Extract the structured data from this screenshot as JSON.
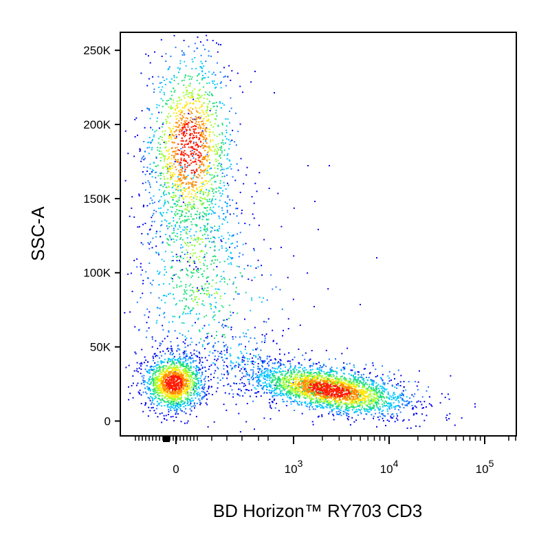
{
  "chart_data": {
    "type": "scatter",
    "style": "flow-cytometry pseudocolor density plot",
    "title": "",
    "xlabel": "BD Horizon™ RY703 CD3",
    "ylabel": "SSC-A",
    "x_scale": "biexponential",
    "x_ticks": [
      {
        "value": 0,
        "base": "0",
        "exp": ""
      },
      {
        "value": 1000,
        "base": "10",
        "exp": "3"
      },
      {
        "value": 10000,
        "base": "10",
        "exp": "4"
      },
      {
        "value": 100000,
        "base": "10",
        "exp": "5"
      }
    ],
    "y_scale": "linear",
    "ylim": [
      -10000,
      262144
    ],
    "y_ticks": [
      {
        "value": 0,
        "label": "0"
      },
      {
        "value": 50000,
        "label": "50K"
      },
      {
        "value": 100000,
        "label": "100K"
      },
      {
        "value": 150000,
        "label": "150K"
      },
      {
        "value": 200000,
        "label": "200K"
      },
      {
        "value": 250000,
        "label": "250K"
      }
    ],
    "grid": false,
    "legend": "none",
    "density_colors": [
      "#0000ff",
      "#00c8ff",
      "#30ff40",
      "#ffff00",
      "#ff0000"
    ],
    "populations": [
      {
        "name_shown": "",
        "description": "CD3-negative lymphocytes",
        "x_center": 0,
        "y_center": 32000,
        "relative_density": "high"
      },
      {
        "name_shown": "",
        "description": "CD3-negative granulocytes/monocytes",
        "x_center": 30,
        "y_center": 170000,
        "relative_density": "medium"
      },
      {
        "name_shown": "",
        "description": "CD3-positive T cells",
        "x_center": 2200,
        "y_center": 28000,
        "relative_density": "very high"
      }
    ]
  }
}
